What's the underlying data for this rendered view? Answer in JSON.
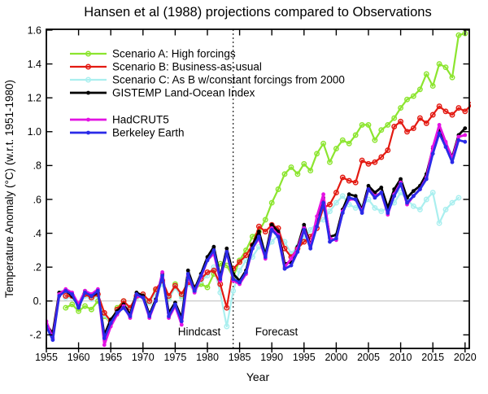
{
  "chart_data": {
    "type": "line",
    "title": "Hansen et al (1988) projections compared to Observations",
    "xlabel": "Year",
    "ylabel": "Temperature Anomaly (°C) (w.r.t. 1951-1980)",
    "x_range": [
      1955,
      2020.7
    ],
    "y_range": [
      -0.28,
      1.605
    ],
    "x_ticks": [
      1955,
      1960,
      1965,
      1970,
      1975,
      1980,
      1985,
      1990,
      1995,
      2000,
      2005,
      2010,
      2015,
      2020
    ],
    "y_ticks": [
      {
        "value": 1.6,
        "label": "1.6"
      },
      {
        "value": 1.4,
        "label": "1.4"
      },
      {
        "value": 1.2,
        "label": "1.2"
      },
      {
        "value": 1.0,
        "label": "1.0"
      },
      {
        "value": 0.8,
        "label": ".8"
      },
      {
        "value": 0.6,
        "label": ".6"
      },
      {
        "value": 0.4,
        "label": ".4"
      },
      {
        "value": 0.2,
        "label": ".2"
      },
      {
        "value": 0.0,
        "label": "0."
      },
      {
        "value": -0.2,
        "label": "-.2"
      }
    ],
    "grid": "horizontal zero line only",
    "legend_position": "upper-left",
    "zero_line_color": "#bcbcbc",
    "frame_color": "#000000",
    "annotations": {
      "hindcast": {
        "text": "Hindcast",
        "x": 1978.7,
        "y": -0.2
      },
      "forecast": {
        "text": "Forecast",
        "x": 1990.7,
        "y": -0.2
      },
      "forecast_divider": {
        "type": "vline",
        "x": 1984,
        "style": "dotted"
      }
    },
    "series": [
      {
        "name": "scenario-a",
        "label": "Scenario A: High forcings",
        "color": "#8ce52f",
        "marker": "open-circle",
        "line_width": 2.2,
        "start_year": 1958,
        "values": [
          -0.04,
          -0.02,
          -0.06,
          -0.03,
          -0.05,
          0.0,
          -0.09,
          -0.13,
          -0.04,
          0.0,
          -0.05,
          0.02,
          0.03,
          -0.01,
          0.06,
          0.12,
          0.02,
          0.1,
          0.03,
          0.12,
          0.07,
          0.1,
          0.08,
          0.16,
          0.22,
          0.21,
          0.14,
          0.24,
          0.3,
          0.38,
          0.41,
          0.48,
          0.58,
          0.66,
          0.75,
          0.79,
          0.75,
          0.81,
          0.77,
          0.87,
          0.93,
          0.82,
          0.9,
          0.95,
          0.93,
          0.98,
          1.04,
          1.04,
          0.95,
          1.01,
          1.04,
          1.08,
          1.14,
          1.19,
          1.21,
          1.25,
          1.34,
          1.27,
          1.4,
          1.38,
          1.32,
          1.57,
          1.58
        ]
      },
      {
        "name": "scenario-b",
        "label": "Scenario B: Business-as-usual",
        "color": "#e31a12",
        "marker": "open-circle",
        "line_width": 2.2,
        "start_year": 1958,
        "values": [
          0.03,
          0.03,
          -0.02,
          0.04,
          0.02,
          0.04,
          -0.07,
          -0.12,
          -0.05,
          0.0,
          -0.04,
          0.03,
          0.04,
          0.0,
          0.07,
          0.12,
          0.03,
          0.09,
          0.04,
          0.11,
          0.08,
          0.13,
          0.17,
          0.18,
          0.1,
          -0.04,
          0.19,
          0.23,
          0.27,
          0.33,
          0.44,
          0.41,
          0.45,
          0.43,
          0.31,
          0.26,
          0.31,
          0.35,
          0.38,
          0.43,
          0.55,
          0.57,
          0.64,
          0.73,
          0.71,
          0.7,
          0.83,
          0.81,
          0.82,
          0.85,
          0.89,
          1.03,
          1.06,
          1.0,
          1.02,
          1.08,
          1.05,
          1.1,
          1.15,
          1.12,
          1.1,
          1.14,
          1.12,
          1.16
        ]
      },
      {
        "name": "scenario-c",
        "label": "Scenario C: As B w/constant forcings from 2000",
        "color": "#aaefef",
        "marker": "open-circle",
        "line_width": 2.2,
        "start_year": 1958,
        "values": [
          0.02,
          0.02,
          -0.03,
          0.03,
          0.01,
          0.03,
          -0.08,
          -0.13,
          -0.06,
          -0.01,
          -0.05,
          0.02,
          0.03,
          -0.01,
          0.05,
          0.1,
          0.01,
          0.08,
          0.02,
          0.1,
          0.06,
          0.12,
          0.15,
          0.2,
          0.05,
          -0.15,
          0.06,
          0.18,
          0.24,
          0.26,
          0.32,
          0.3,
          0.35,
          0.39,
          0.35,
          0.28,
          0.32,
          0.37,
          0.42,
          0.46,
          0.48,
          0.53,
          0.58,
          0.62,
          0.57,
          0.55,
          0.56,
          0.6,
          0.55,
          0.53,
          0.55,
          0.58,
          0.64,
          0.6,
          0.56,
          0.54,
          0.6,
          0.64,
          0.46,
          0.54,
          0.58,
          0.61
        ]
      },
      {
        "name": "gistemp",
        "label": "GISTEMP Land-Ocean Index",
        "color": "#000000",
        "marker": "filled-circle",
        "line_width": 2.8,
        "start_year": 1955,
        "values": [
          -0.14,
          -0.19,
          0.05,
          0.06,
          0.03,
          -0.03,
          0.06,
          0.03,
          0.05,
          -0.2,
          -0.11,
          -0.06,
          -0.02,
          -0.08,
          0.05,
          0.03,
          -0.08,
          0.01,
          0.16,
          -0.07,
          -0.01,
          -0.1,
          0.18,
          0.07,
          0.16,
          0.26,
          0.32,
          0.14,
          0.31,
          0.16,
          0.12,
          0.18,
          0.33,
          0.41,
          0.27,
          0.45,
          0.41,
          0.22,
          0.23,
          0.32,
          0.45,
          0.33,
          0.46,
          0.61,
          0.38,
          0.39,
          0.54,
          0.63,
          0.62,
          0.54,
          0.68,
          0.64,
          0.67,
          0.55,
          0.66,
          0.72,
          0.61,
          0.65,
          0.68,
          0.75,
          0.9,
          1.02,
          0.93,
          0.85,
          0.98,
          1.02
        ]
      },
      {
        "name": "hadcrut5",
        "label": "HadCRUT5",
        "color": "#e313e3",
        "marker": "filled-circle",
        "line_width": 2.8,
        "start_year": 1955,
        "values": [
          -0.12,
          -0.22,
          0.04,
          0.07,
          0.05,
          -0.02,
          0.06,
          0.04,
          0.07,
          -0.26,
          -0.15,
          -0.08,
          -0.03,
          -0.1,
          0.03,
          0.02,
          -0.1,
          0.0,
          0.17,
          -0.1,
          -0.03,
          -0.14,
          0.15,
          0.05,
          0.14,
          0.24,
          0.28,
          0.12,
          0.29,
          0.12,
          0.1,
          0.16,
          0.31,
          0.37,
          0.25,
          0.43,
          0.39,
          0.2,
          0.25,
          0.31,
          0.43,
          0.32,
          0.5,
          0.63,
          0.37,
          0.36,
          0.53,
          0.6,
          0.6,
          0.53,
          0.66,
          0.62,
          0.64,
          0.51,
          0.63,
          0.7,
          0.57,
          0.62,
          0.66,
          0.73,
          0.91,
          1.04,
          0.94,
          0.84,
          0.97,
          0.98
        ]
      },
      {
        "name": "berkeley-earth",
        "label": "Berkeley Earth",
        "color": "#2a2ae8",
        "marker": "filled-circle",
        "line_width": 2.8,
        "start_year": 1955,
        "values": [
          -0.15,
          -0.23,
          0.03,
          0.06,
          0.04,
          -0.04,
          0.05,
          0.03,
          0.06,
          -0.22,
          -0.13,
          -0.07,
          -0.04,
          -0.09,
          0.04,
          0.02,
          -0.09,
          0.0,
          0.15,
          -0.09,
          -0.02,
          -0.12,
          0.16,
          0.06,
          0.15,
          0.24,
          0.3,
          0.13,
          0.29,
          0.13,
          0.11,
          0.17,
          0.31,
          0.38,
          0.26,
          0.42,
          0.38,
          0.19,
          0.21,
          0.29,
          0.42,
          0.31,
          0.44,
          0.58,
          0.35,
          0.37,
          0.52,
          0.61,
          0.6,
          0.52,
          0.66,
          0.61,
          0.64,
          0.52,
          0.62,
          0.69,
          0.58,
          0.62,
          0.66,
          0.72,
          0.87,
          0.99,
          0.91,
          0.82,
          0.95,
          0.94
        ]
      }
    ]
  }
}
